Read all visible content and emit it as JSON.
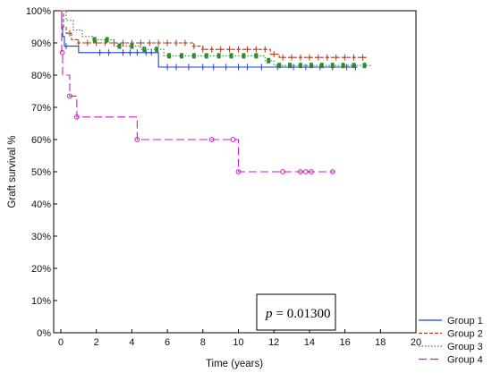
{
  "chart_data": {
    "type": "line",
    "ylabel": "Graft survival %",
    "xlabel": "Time (years)",
    "xlim": [
      0,
      20
    ],
    "ylim": [
      0,
      100
    ],
    "x_ticks": [
      0,
      2,
      4,
      6,
      8,
      10,
      12,
      14,
      16,
      18,
      20
    ],
    "y_ticks": [
      0,
      10,
      20,
      30,
      40,
      50,
      60,
      70,
      80,
      90,
      100
    ],
    "y_tick_suffix": "%",
    "grid": false,
    "legend_position": "bottom-right",
    "annotation": {
      "p_label": "p",
      "p_value": "= 0.01300"
    },
    "series": [
      {
        "name": "Group 1",
        "color": "#1f3fd6",
        "dash": "solid",
        "steps": [
          [
            0,
            100
          ],
          [
            0.05,
            95
          ],
          [
            0.1,
            92
          ],
          [
            0.2,
            89
          ],
          [
            1.0,
            87
          ],
          [
            5.5,
            82.5
          ],
          [
            16.7,
            82.5
          ]
        ],
        "censored_x": [
          0.3,
          2.2,
          2.7,
          3.5,
          3.9,
          4.3,
          4.8,
          5.1,
          6.0,
          6.5,
          7.2,
          8.0,
          8.6,
          9.3,
          10.0,
          10.5,
          11.3,
          12.2,
          13.1,
          13.8,
          14.6,
          15.3,
          16.1,
          16.6
        ]
      },
      {
        "name": "Group 2",
        "color": "#b03a1a",
        "dash": "dash",
        "steps": [
          [
            0,
            100
          ],
          [
            0.15,
            95
          ],
          [
            0.3,
            93
          ],
          [
            0.6,
            91
          ],
          [
            1.0,
            90
          ],
          [
            7.5,
            89
          ],
          [
            8.0,
            88
          ],
          [
            11.8,
            86.5
          ],
          [
            12.3,
            85.5
          ],
          [
            17.3,
            85.5
          ]
        ],
        "censored_x": [
          0.5,
          1.0,
          1.5,
          2.0,
          2.5,
          3.0,
          3.5,
          4.0,
          4.5,
          5.0,
          5.5,
          6.0,
          6.5,
          7.0,
          7.5,
          8.0,
          8.5,
          9.0,
          9.5,
          10.0,
          10.5,
          11.0,
          11.5,
          12.0,
          12.5,
          13.0,
          13.5,
          14.0,
          14.5,
          15.0,
          15.5,
          16.0,
          16.5,
          17.0
        ]
      },
      {
        "name": "Group 3",
        "color": "#2e8b2e",
        "dash": "dot",
        "steps": [
          [
            0,
            100
          ],
          [
            0.3,
            97
          ],
          [
            0.7,
            94
          ],
          [
            1.2,
            92
          ],
          [
            1.8,
            91
          ],
          [
            3.0,
            89
          ],
          [
            4.5,
            88
          ],
          [
            5.8,
            86
          ],
          [
            11.5,
            84.5
          ],
          [
            12.0,
            83
          ],
          [
            17.5,
            83
          ]
        ],
        "censored_x": [
          1.9,
          2.6,
          3.3,
          4.0,
          4.7,
          5.4,
          6.1,
          6.8,
          7.5,
          8.2,
          8.9,
          9.6,
          10.3,
          11.0,
          11.7,
          12.3,
          12.9,
          13.5,
          14.1,
          14.7,
          15.3,
          15.9,
          16.5,
          17.1
        ]
      },
      {
        "name": "Group 4",
        "color": "#c81ec8",
        "dash": "longdash",
        "steps": [
          [
            0,
            100
          ],
          [
            0.05,
            87
          ],
          [
            0.1,
            80
          ],
          [
            0.5,
            73.5
          ],
          [
            0.9,
            67
          ],
          [
            4.3,
            60
          ],
          [
            10.0,
            50
          ],
          [
            15.4,
            50
          ]
        ],
        "censored_x": [
          0.08,
          0.5,
          0.9,
          4.3,
          8.5,
          9.7,
          10.0,
          12.5,
          13.5,
          13.8,
          14.1,
          15.3
        ]
      }
    ]
  }
}
